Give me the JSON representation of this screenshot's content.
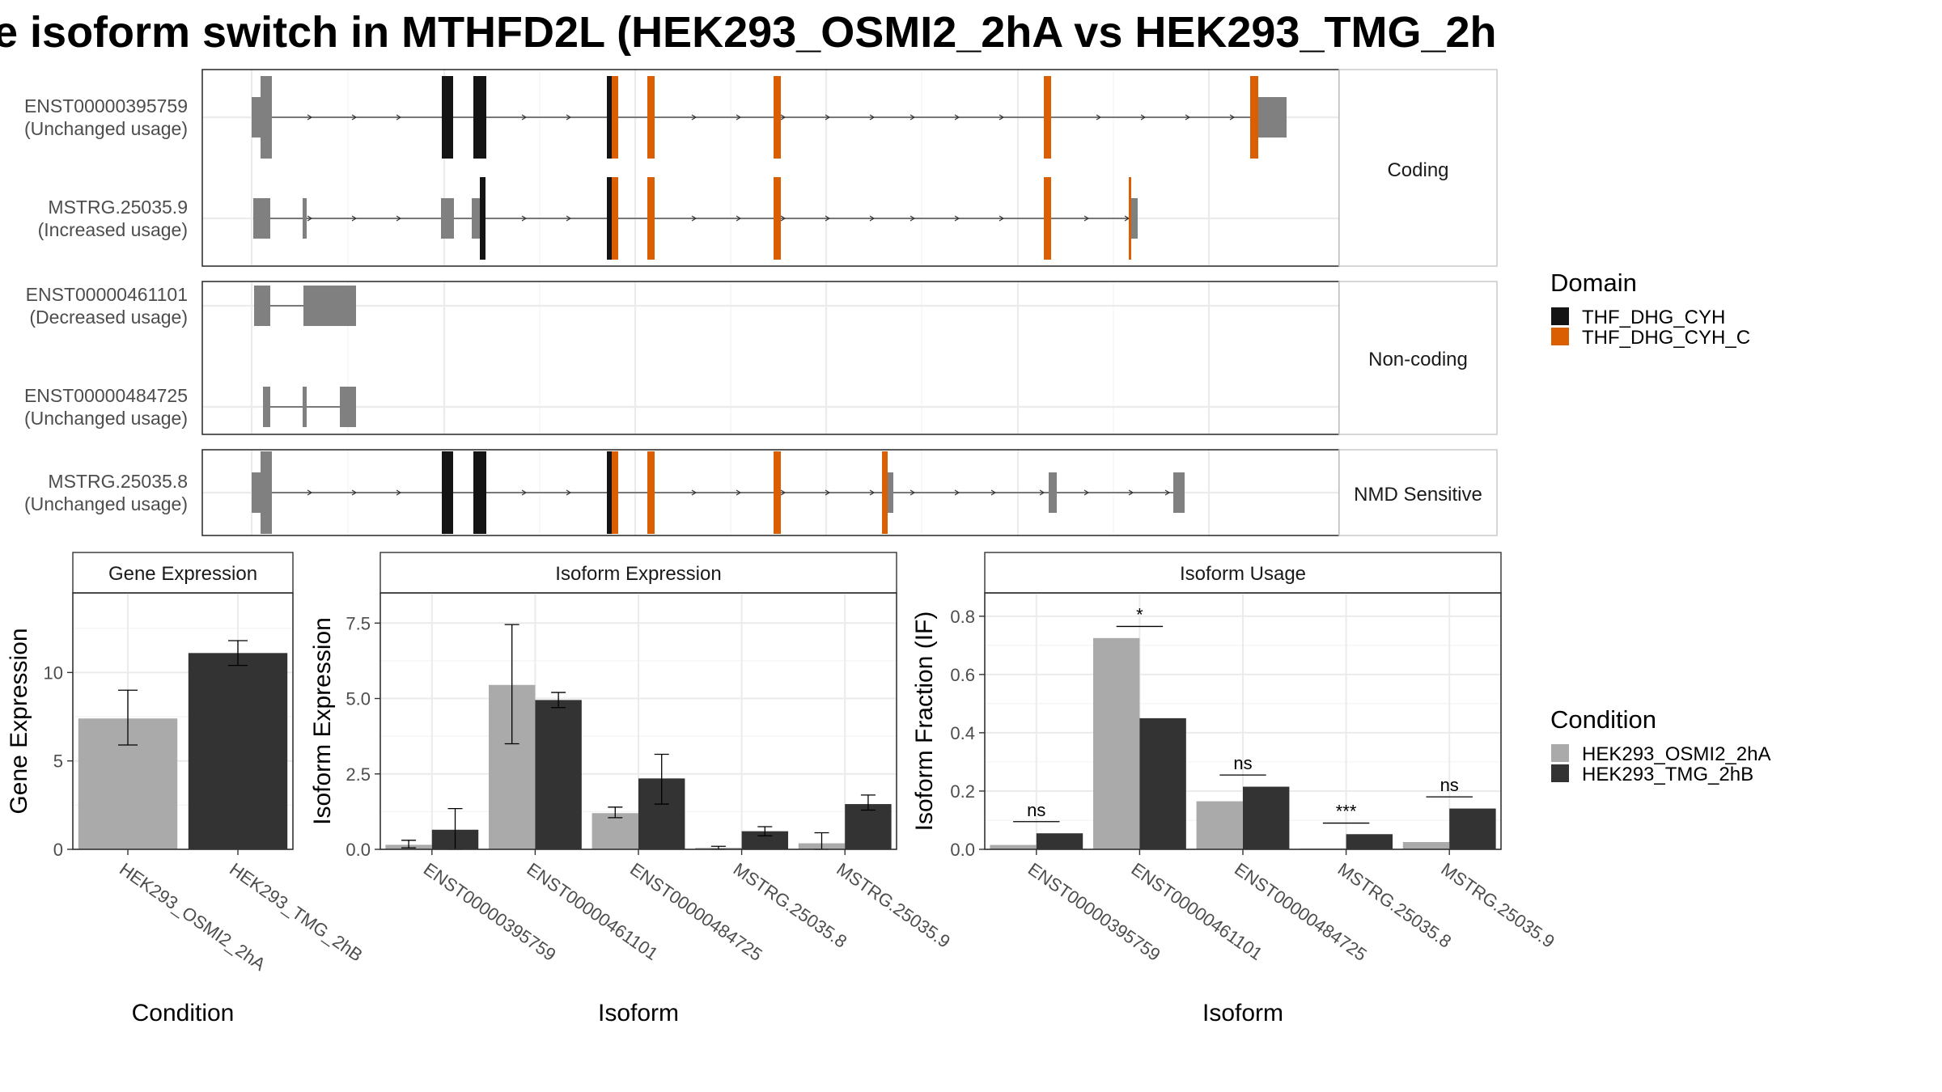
{
  "title": "e isoform switch in MTHFD2L (HEK293_OSMI2_2hA vs HEK293_TMG_2h",
  "colors": {
    "exon": "#808080",
    "THF_DHG_CYH": "#141414",
    "THF_DHG_CYH_C": "#d95f02",
    "cond1": "#aaaaaa",
    "cond2": "#333333"
  },
  "transcripts": {
    "groups": [
      "Coding",
      "Non-coding",
      "NMD Sensitive"
    ],
    "items": [
      {
        "id": "ENST00000395759",
        "usage": "(Unchanged usage)",
        "group": "Coding"
      },
      {
        "id": "MSTRG.25035.9",
        "usage": "(Increased usage)",
        "group": "Coding"
      },
      {
        "id": "ENST00000461101",
        "usage": "(Decreased usage)",
        "group": "Non-coding"
      },
      {
        "id": "ENST00000484725",
        "usage": "(Unchanged usage)",
        "group": "Non-coding"
      },
      {
        "id": "MSTRG.25035.8",
        "usage": "(Unchanged usage)",
        "group": "NMD Sensitive"
      }
    ]
  },
  "legend_domain": {
    "title": "Domain",
    "items": [
      {
        "label": "THF_DHG_CYH",
        "color": "#141414"
      },
      {
        "label": "THF_DHG_CYH_C",
        "color": "#d95f02"
      }
    ]
  },
  "legend_condition": {
    "title": "Condition",
    "items": [
      {
        "label": "HEK293_OSMI2_2hA",
        "color": "#aaaaaa"
      },
      {
        "label": "HEK293_TMG_2hB",
        "color": "#333333"
      }
    ]
  },
  "chart_data": [
    {
      "type": "bar",
      "panel_title": "Gene Expression",
      "categories": [
        "HEK293_OSMI2_2hA",
        "HEK293_TMG_2hB"
      ],
      "values": [
        7.4,
        11.1
      ],
      "error_low": [
        5.9,
        10.4
      ],
      "error_high": [
        9.0,
        11.8
      ],
      "xlabel": "Condition",
      "ylabel": "Gene Expression",
      "ylim": [
        0,
        14.5
      ],
      "yticks": [
        0,
        5,
        10
      ],
      "ytick_labels": [
        "0",
        "5",
        "10"
      ]
    },
    {
      "type": "bar",
      "panel_title": "Isoform Expression",
      "categories": [
        "ENST00000395759",
        "ENST00000461101",
        "ENST00000484725",
        "MSTRG.25035.8",
        "MSTRG.25035.9"
      ],
      "series": [
        {
          "name": "HEK293_OSMI2_2hA",
          "values": [
            0.15,
            5.45,
            1.2,
            0.05,
            0.2
          ],
          "error_low": [
            0.05,
            3.5,
            1.05,
            0.0,
            0.0
          ],
          "error_high": [
            0.3,
            7.45,
            1.4,
            0.1,
            0.55
          ]
        },
        {
          "name": "HEK293_TMG_2hB",
          "values": [
            0.65,
            4.95,
            2.35,
            0.6,
            1.5
          ],
          "error_low": [
            0.0,
            4.7,
            1.5,
            0.45,
            1.3
          ],
          "error_high": [
            1.35,
            5.2,
            3.15,
            0.75,
            1.8
          ]
        }
      ],
      "xlabel": "Isoform",
      "ylabel": "Isoform Expression",
      "ylim": [
        0,
        8.5
      ],
      "yticks": [
        0,
        2.5,
        5,
        7.5
      ],
      "ytick_labels": [
        "0.0",
        "2.5",
        "5.0",
        "7.5"
      ]
    },
    {
      "type": "bar",
      "panel_title": "Isoform Usage",
      "categories": [
        "ENST00000395759",
        "ENST00000461101",
        "ENST00000484725",
        "MSTRG.25035.8",
        "MSTRG.25035.9"
      ],
      "series": [
        {
          "name": "HEK293_OSMI2_2hA",
          "values": [
            0.015,
            0.725,
            0.165,
            0.003,
            0.025
          ]
        },
        {
          "name": "HEK293_TMG_2hB",
          "values": [
            0.055,
            0.45,
            0.215,
            0.052,
            0.14
          ]
        }
      ],
      "significance": [
        "ns",
        "*",
        "ns",
        "***",
        "ns"
      ],
      "significance_y": [
        0.095,
        0.765,
        0.255,
        0.09,
        0.18
      ],
      "xlabel": "Isoform",
      "ylabel": "Isoform Fraction (IF)",
      "ylim": [
        0,
        0.88
      ],
      "yticks": [
        0,
        0.2,
        0.4,
        0.6,
        0.8
      ],
      "ytick_labels": [
        "0.0",
        "0.2",
        "0.4",
        "0.6",
        "0.8"
      ]
    }
  ]
}
